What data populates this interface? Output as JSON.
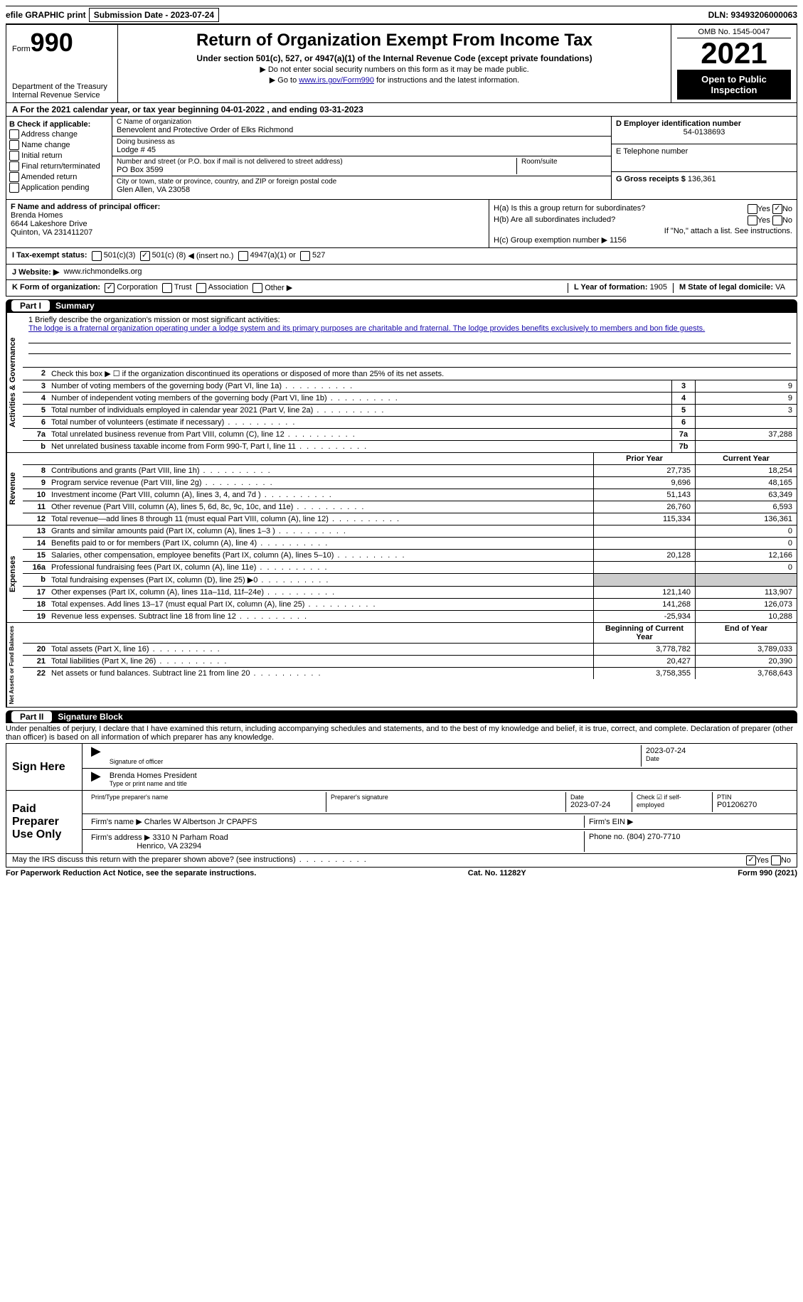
{
  "topbar": {
    "efile": "efile GRAPHIC print",
    "submission_label": "Submission Date - 2023-07-24",
    "dln": "DLN: 93493206000063"
  },
  "header": {
    "form_prefix": "Form",
    "form_num": "990",
    "dept": "Department of the Treasury",
    "irs": "Internal Revenue Service",
    "title": "Return of Organization Exempt From Income Tax",
    "subtitle": "Under section 501(c), 527, or 4947(a)(1) of the Internal Revenue Code (except private foundations)",
    "note1": "▶ Do not enter social security numbers on this form as it may be made public.",
    "note2_pre": "▶ Go to ",
    "note2_link": "www.irs.gov/Form990",
    "note2_post": " for instructions and the latest information.",
    "omb": "OMB No. 1545-0047",
    "year": "2021",
    "open": "Open to Public Inspection"
  },
  "row_a": "A For the 2021 calendar year, or tax year beginning 04-01-2022  , and ending 03-31-2023",
  "section_b": {
    "label": "B Check if applicable:",
    "items": [
      "Address change",
      "Name change",
      "Initial return",
      "Final return/terminated",
      "Amended return",
      "Application pending"
    ]
  },
  "section_c": {
    "name_lbl": "C Name of organization",
    "name": "Benevolent and Protective Order of Elks Richmond",
    "dba_lbl": "Doing business as",
    "dba": "Lodge # 45",
    "street_lbl": "Number and street (or P.O. box if mail is not delivered to street address)",
    "street": "PO Box 3599",
    "suite_lbl": "Room/suite",
    "city_lbl": "City or town, state or province, country, and ZIP or foreign postal code",
    "city": "Glen Allen, VA  23058"
  },
  "section_d": {
    "ein_lbl": "D Employer identification number",
    "ein": "54-0138693",
    "phone_lbl": "E Telephone number",
    "gross_lbl": "G Gross receipts $",
    "gross": "136,361"
  },
  "section_f": {
    "lbl": "F  Name and address of principal officer:",
    "name": "Brenda Homes",
    "addr1": "6644 Lakeshore Drive",
    "addr2": "Quinton, VA  231411207"
  },
  "section_h": {
    "a": "H(a)  Is this a group return for subordinates?",
    "b": "H(b)  Are all subordinates included?",
    "note": "If \"No,\" attach a list. See instructions.",
    "c_lbl": "H(c)  Group exemption number ▶",
    "c_val": "1156"
  },
  "status": {
    "lbl": "I  Tax-exempt status:",
    "opt1": "501(c)(3)",
    "opt2_pre": "501(c) (",
    "opt2_num": "8",
    "opt2_post": ") ◀ (insert no.)",
    "opt3": "4947(a)(1) or",
    "opt4": "527"
  },
  "row_j": {
    "lbl": "J  Website: ▶",
    "val": "www.richmondelks.org"
  },
  "row_k": {
    "lbl": "K Form of organization:",
    "opts": [
      "Corporation",
      "Trust",
      "Association",
      "Other ▶"
    ],
    "l_lbl": "L Year of formation:",
    "l_val": "1905",
    "m_lbl": "M State of legal domicile:",
    "m_val": "VA"
  },
  "part1": {
    "num": "Part I",
    "title": "Summary"
  },
  "mission": {
    "lbl": "1  Briefly describe the organization's mission or most significant activities:",
    "text": "The lodge is a fraternal organization operating under a lodge system and its primary purposes are charitable and fraternal. The lodge provides benefits exclusively to members and bon fide guests."
  },
  "line2": "Check this box ▶ ☐ if the organization discontinued its operations or disposed of more than 25% of its net assets.",
  "vtabs": {
    "ag": "Activities & Governance",
    "rev": "Revenue",
    "exp": "Expenses",
    "net": "Net Assets or Fund Balances"
  },
  "lines_ag": [
    {
      "n": "3",
      "t": "Number of voting members of the governing body (Part VI, line 1a)",
      "b": "3",
      "v": "9"
    },
    {
      "n": "4",
      "t": "Number of independent voting members of the governing body (Part VI, line 1b)",
      "b": "4",
      "v": "9"
    },
    {
      "n": "5",
      "t": "Total number of individuals employed in calendar year 2021 (Part V, line 2a)",
      "b": "5",
      "v": "3"
    },
    {
      "n": "6",
      "t": "Total number of volunteers (estimate if necessary)",
      "b": "6",
      "v": ""
    },
    {
      "n": "7a",
      "t": "Total unrelated business revenue from Part VIII, column (C), line 12",
      "b": "7a",
      "v": "37,288"
    },
    {
      "n": "b",
      "t": "Net unrelated business taxable income from Form 990-T, Part I, line 11",
      "b": "7b",
      "v": ""
    }
  ],
  "col_headers": {
    "prior": "Prior Year",
    "current": "Current Year",
    "begin": "Beginning of Current Year",
    "end": "End of Year"
  },
  "lines_rev": [
    {
      "n": "8",
      "t": "Contributions and grants (Part VIII, line 1h)",
      "p": "27,735",
      "c": "18,254"
    },
    {
      "n": "9",
      "t": "Program service revenue (Part VIII, line 2g)",
      "p": "9,696",
      "c": "48,165"
    },
    {
      "n": "10",
      "t": "Investment income (Part VIII, column (A), lines 3, 4, and 7d )",
      "p": "51,143",
      "c": "63,349"
    },
    {
      "n": "11",
      "t": "Other revenue (Part VIII, column (A), lines 5, 6d, 8c, 9c, 10c, and 11e)",
      "p": "26,760",
      "c": "6,593"
    },
    {
      "n": "12",
      "t": "Total revenue—add lines 8 through 11 (must equal Part VIII, column (A), line 12)",
      "p": "115,334",
      "c": "136,361"
    }
  ],
  "lines_exp": [
    {
      "n": "13",
      "t": "Grants and similar amounts paid (Part IX, column (A), lines 1–3 )",
      "p": "",
      "c": "0"
    },
    {
      "n": "14",
      "t": "Benefits paid to or for members (Part IX, column (A), line 4)",
      "p": "",
      "c": "0"
    },
    {
      "n": "15",
      "t": "Salaries, other compensation, employee benefits (Part IX, column (A), lines 5–10)",
      "p": "20,128",
      "c": "12,166"
    },
    {
      "n": "16a",
      "t": "Professional fundraising fees (Part IX, column (A), line 11e)",
      "p": "",
      "c": "0"
    },
    {
      "n": "b",
      "t": "Total fundraising expenses (Part IX, column (D), line 25) ▶0",
      "p": "grey",
      "c": "grey"
    },
    {
      "n": "17",
      "t": "Other expenses (Part IX, column (A), lines 11a–11d, 11f–24e)",
      "p": "121,140",
      "c": "113,907"
    },
    {
      "n": "18",
      "t": "Total expenses. Add lines 13–17 (must equal Part IX, column (A), line 25)",
      "p": "141,268",
      "c": "126,073"
    },
    {
      "n": "19",
      "t": "Revenue less expenses. Subtract line 18 from line 12",
      "p": "-25,934",
      "c": "10,288"
    }
  ],
  "lines_net": [
    {
      "n": "20",
      "t": "Total assets (Part X, line 16)",
      "p": "3,778,782",
      "c": "3,789,033"
    },
    {
      "n": "21",
      "t": "Total liabilities (Part X, line 26)",
      "p": "20,427",
      "c": "20,390"
    },
    {
      "n": "22",
      "t": "Net assets or fund balances. Subtract line 21 from line 20",
      "p": "3,758,355",
      "c": "3,768,643"
    }
  ],
  "part2": {
    "num": "Part II",
    "title": "Signature Block"
  },
  "penalties": "Under penalties of perjury, I declare that I have examined this return, including accompanying schedules and statements, and to the best of my knowledge and belief, it is true, correct, and complete. Declaration of preparer (other than officer) is based on all information of which preparer has any knowledge.",
  "sign": {
    "here": "Sign Here",
    "sig_of": "Signature of officer",
    "date": "2023-07-24",
    "date_lbl": "Date",
    "name": "Brenda Homes  President",
    "name_lbl": "Type or print name and title"
  },
  "preparer": {
    "label": "Paid Preparer Use Only",
    "name_lbl": "Print/Type preparer's name",
    "sig_lbl": "Preparer's signature",
    "date_lbl": "Date",
    "date": "2023-07-24",
    "check_lbl": "Check ☑ if self-employed",
    "ptin_lbl": "PTIN",
    "ptin": "P01206270",
    "firm_name_lbl": "Firm's name   ▶",
    "firm_name": "Charles W Albertson Jr CPAPFS",
    "firm_ein_lbl": "Firm's EIN ▶",
    "firm_addr_lbl": "Firm's address ▶",
    "firm_addr1": "3310 N Parham Road",
    "firm_addr2": "Henrico, VA  23294",
    "phone_lbl": "Phone no.",
    "phone": "(804) 270-7710"
  },
  "discuss": "May the IRS discuss this return with the preparer shown above? (see instructions)",
  "footer": {
    "left": "For Paperwork Reduction Act Notice, see the separate instructions.",
    "mid": "Cat. No. 11282Y",
    "right": "Form 990 (2021)"
  }
}
